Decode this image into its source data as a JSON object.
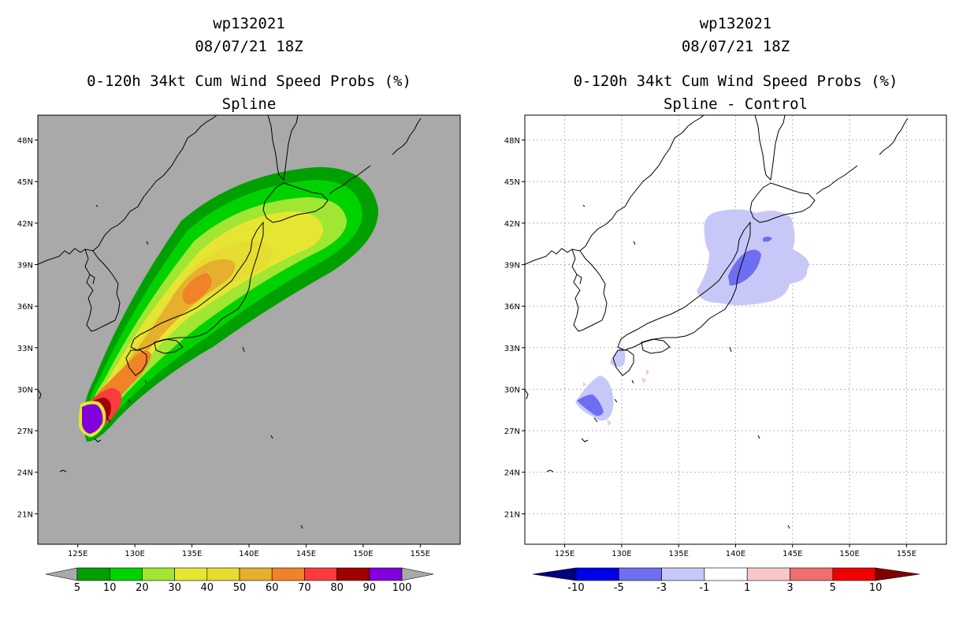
{
  "panels": [
    {
      "id": "left",
      "title_lines": [
        "wp132021",
        "08/07/21 18Z",
        "0-120h 34kt Cum Wind Speed Probs (%)",
        "Spline"
      ],
      "background": "#a9a9a9",
      "colorbar": {
        "labels": [
          "5",
          "10",
          "20",
          "30",
          "40",
          "50",
          "60",
          "70",
          "80",
          "90",
          "100"
        ],
        "colors": [
          "#00a000",
          "#00d200",
          "#a0e632",
          "#e6e632",
          "#e6dc32",
          "#e6af2d",
          "#f08228",
          "#fa3c3c",
          "#a00000",
          "#8200dc"
        ],
        "end_color": "#a9a9a9"
      }
    },
    {
      "id": "right",
      "title_lines": [
        "wp132021",
        "08/07/21 18Z",
        "0-120h 34kt Cum Wind Speed Probs (%)",
        "Spline - Control"
      ],
      "background": "#ffffff",
      "colorbar": {
        "labels": [
          "-10",
          "-5",
          "-3",
          "-1",
          "1",
          "3",
          "5",
          "10"
        ],
        "colors": [
          "#0000e6",
          "#6e6ef0",
          "#c8c8f8",
          "#ffffff",
          "#f8c8c8",
          "#f06e6e",
          "#f00000"
        ],
        "end_left": "#000080",
        "end_right": "#800000"
      }
    }
  ],
  "map": {
    "lat_labels": [
      "48N",
      "45N",
      "42N",
      "39N",
      "36N",
      "33N",
      "30N",
      "27N",
      "24N",
      "21N"
    ],
    "lon_labels": [
      "125E",
      "130E",
      "135E",
      "140E",
      "145E",
      "150E",
      "155E"
    ],
    "lat_values": [
      48,
      45,
      42,
      39,
      36,
      33,
      30,
      27,
      24,
      21
    ],
    "lon_values": [
      125,
      130,
      135,
      140,
      145,
      150,
      155
    ],
    "extent": {
      "lon_min": 121.5,
      "lon_max": 158.5,
      "lat_min": 18.8,
      "lat_max": 49.8
    }
  },
  "plume_left": [
    {
      "prob": "5",
      "color": "#00a000"
    },
    {
      "prob": "10",
      "color": "#00d200"
    },
    {
      "prob": "20",
      "color": "#a0e632"
    },
    {
      "prob": "30",
      "color": "#e6e632"
    },
    {
      "prob": "40",
      "color": "#e6dc32"
    },
    {
      "prob": "50",
      "color": "#e6af2d"
    },
    {
      "prob": "60",
      "color": "#f08228"
    },
    {
      "prob": "70",
      "color": "#fa3c3c"
    },
    {
      "prob": "80",
      "color": "#a00000"
    },
    {
      "prob": "100",
      "color": "#8200dc"
    }
  ],
  "diff_right": [
    {
      "level": "-1 to -3",
      "color": "#c8c8f8"
    },
    {
      "level": "-3 to -5",
      "color": "#6e6ef0"
    },
    {
      "level": "1 to 3",
      "color": "#f8c8c8"
    }
  ]
}
